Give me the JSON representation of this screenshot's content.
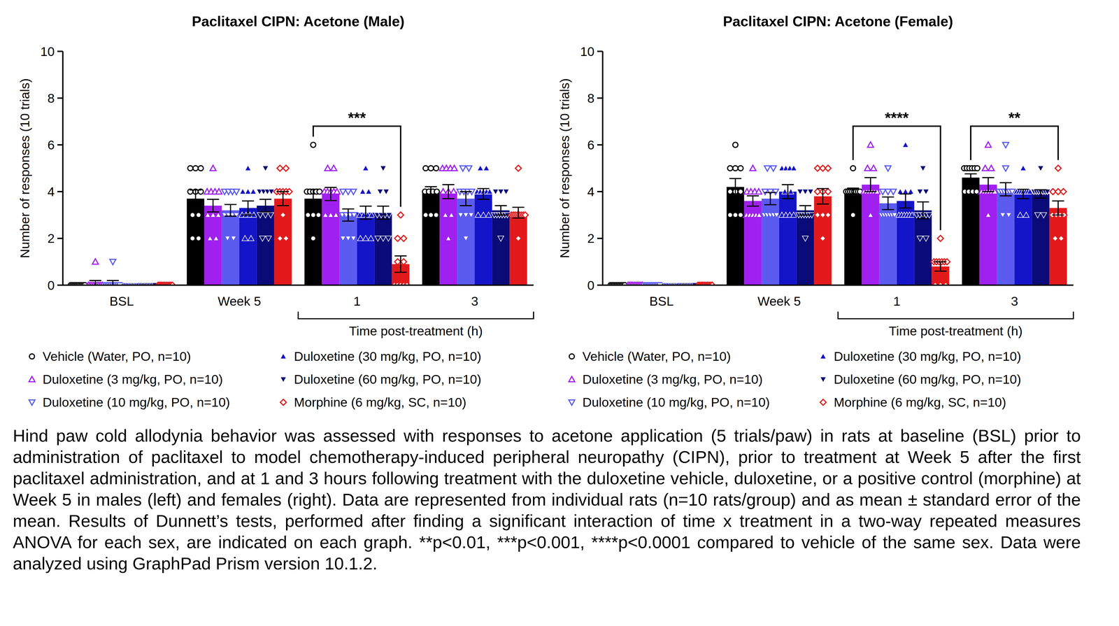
{
  "chart_data": [
    {
      "type": "bar",
      "title": "Paclitaxel CIPN: Acetone (Male)",
      "categories": [
        "BSL",
        "Week 5",
        "1",
        "3"
      ],
      "ylabel": "Number of responses (10 trials)",
      "ylim": [
        0,
        10
      ],
      "yticks": [
        0,
        2,
        4,
        6,
        8,
        10
      ],
      "grid": false,
      "legend": "bottom",
      "x_group": {
        "label": "Time post-treatment (h)",
        "categories": [
          "1",
          "3"
        ]
      },
      "annotations": [
        {
          "text": "***",
          "category": "1",
          "from": "Vehicle (Water, PO, n=10)",
          "to": "Morphine (6 mg/kg, SC, n=10)"
        }
      ],
      "series": [
        {
          "name": "Vehicle (Water, PO, n=10)",
          "color": "#000000",
          "marker": "open-circle",
          "values": [
            0,
            3.7,
            3.7,
            4.0
          ],
          "errors": [
            0,
            0.37,
            0.4,
            0.21
          ],
          "points": [
            [
              0,
              0,
              0,
              0,
              0,
              0,
              0,
              0,
              0,
              0
            ],
            [
              5,
              5,
              5,
              4,
              4,
              4,
              3,
              3,
              2,
              2
            ],
            [
              6,
              4,
              4,
              4,
              4,
              4,
              3,
              3,
              3,
              2
            ],
            [
              5,
              5,
              5,
              4,
              4,
              4,
              4,
              3,
              3,
              3
            ]
          ]
        },
        {
          "name": "Duloxetine (3 mg/kg, PO, n=10)",
          "color": "#a020f0",
          "marker": "open-triangle",
          "values": [
            0.1,
            3.4,
            3.9,
            4.0
          ],
          "errors": [
            0.1,
            0.27,
            0.28,
            0.3
          ],
          "points": [
            [
              1,
              0,
              0,
              0,
              0,
              0,
              0,
              0,
              0,
              0
            ],
            [
              5,
              4,
              4,
              4,
              4,
              3,
              3,
              3,
              2,
              2
            ],
            [
              5,
              5,
              4,
              4,
              4,
              4,
              4,
              3,
              3,
              3
            ],
            [
              5,
              5,
              5,
              5,
              4,
              4,
              4,
              3,
              3,
              2
            ]
          ]
        },
        {
          "name": "Duloxetine (10 mg/kg, PO, n=10)",
          "color": "#5b5bf0",
          "marker": "open-triangle-down",
          "values": [
            0.1,
            3.2,
            3.0,
            3.7
          ],
          "errors": [
            0.1,
            0.25,
            0.26,
            0.3
          ],
          "points": [
            [
              1,
              0,
              0,
              0,
              0,
              0,
              0,
              0,
              0,
              0
            ],
            [
              4,
              4,
              4,
              4,
              3,
              3,
              3,
              3,
              2,
              2
            ],
            [
              4,
              4,
              4,
              3,
              3,
              3,
              3,
              2,
              2,
              2
            ],
            [
              5,
              5,
              4,
              4,
              4,
              4,
              3,
              3,
              3,
              2
            ]
          ]
        },
        {
          "name": "Duloxetine (30 mg/kg, PO, n=10)",
          "color": "#1414c8",
          "marker": "triangle",
          "values": [
            0,
            3.3,
            3.1,
            3.9
          ],
          "errors": [
            0,
            0.3,
            0.28,
            0.23
          ],
          "points": [
            [
              0,
              0,
              0,
              0,
              0,
              0,
              0,
              0,
              0,
              0
            ],
            [
              5,
              4,
              4,
              4,
              3,
              3,
              3,
              3,
              2,
              2
            ],
            [
              5,
              4,
              4,
              3,
              3,
              3,
              3,
              2,
              2,
              2
            ],
            [
              5,
              5,
              4,
              4,
              4,
              4,
              4,
              3,
              3,
              3
            ]
          ]
        },
        {
          "name": "Duloxetine (60 mg/kg, PO, n=10)",
          "color": "#0a0a78",
          "marker": "triangle-down",
          "values": [
            0,
            3.4,
            3.1,
            3.2
          ],
          "errors": [
            0,
            0.27,
            0.28,
            0.2
          ],
          "points": [
            [
              0,
              0,
              0,
              0,
              0,
              0,
              0,
              0,
              0,
              0
            ],
            [
              5,
              4,
              4,
              4,
              4,
              3,
              3,
              3,
              2,
              2
            ],
            [
              5,
              4,
              4,
              3,
              3,
              3,
              3,
              2,
              2,
              2
            ],
            [
              4,
              4,
              4,
              3,
              3,
              3,
              3,
              3,
              3,
              2
            ]
          ]
        },
        {
          "name": "Morphine (6 mg/kg, SC, n=10)",
          "color": "#e31a1c",
          "marker": "open-diamond",
          "values": [
            0,
            3.7,
            0.9,
            3.1
          ],
          "errors": [
            0,
            0.3,
            0.35,
            0.23
          ],
          "points": [
            [
              0,
              0,
              0,
              0,
              0,
              0,
              0,
              0,
              0,
              0
            ],
            [
              5,
              5,
              4,
              4,
              4,
              4,
              4,
              3,
              2,
              2
            ],
            [
              3,
              2,
              2,
              1,
              1,
              0,
              0,
              0,
              0,
              0
            ],
            [
              5,
              3,
              3,
              3,
              3,
              3,
              3,
              3,
              3,
              2
            ]
          ]
        }
      ]
    },
    {
      "type": "bar",
      "title": "Paclitaxel CIPN: Acetone (Female)",
      "categories": [
        "BSL",
        "Week 5",
        "1",
        "3"
      ],
      "ylabel": "Number of responses (10 trials)",
      "ylim": [
        0,
        10
      ],
      "yticks": [
        0,
        2,
        4,
        6,
        8,
        10
      ],
      "grid": false,
      "legend": "bottom",
      "x_group": {
        "label": "Time post-treatment (h)",
        "categories": [
          "1",
          "3"
        ]
      },
      "annotations": [
        {
          "text": "****",
          "category": "1",
          "from": "Vehicle (Water, PO, n=10)",
          "to": "Morphine (6 mg/kg, SC, n=10)"
        },
        {
          "text": "**",
          "category": "3",
          "from": "Vehicle (Water, PO, n=10)",
          "to": "Morphine (6 mg/kg, SC, n=10)"
        }
      ],
      "series": [
        {
          "name": "Vehicle (Water, PO, n=10)",
          "color": "#000000",
          "marker": "open-circle",
          "values": [
            0,
            4.2,
            4.0,
            4.6
          ],
          "errors": [
            0,
            0.36,
            0.15,
            0.16
          ],
          "points": [
            [
              0,
              0,
              0,
              0,
              0,
              0,
              0,
              0,
              0,
              0
            ],
            [
              6,
              5,
              5,
              5,
              4,
              4,
              4,
              3,
              3,
              3
            ],
            [
              5,
              4,
              4,
              4,
              4,
              4,
              4,
              4,
              4,
              3
            ],
            [
              5,
              5,
              5,
              5,
              5,
              5,
              4,
              4,
              4,
              4
            ]
          ]
        },
        {
          "name": "Duloxetine (3 mg/kg, PO, n=10)",
          "color": "#a020f0",
          "marker": "open-triangle",
          "values": [
            0,
            3.6,
            4.3,
            4.3
          ],
          "errors": [
            0,
            0.22,
            0.3,
            0.3
          ],
          "points": [
            [
              0,
              0,
              0,
              0,
              0,
              0,
              0,
              0,
              0,
              0
            ],
            [
              5,
              4,
              4,
              4,
              4,
              3,
              3,
              3,
              3,
              3
            ],
            [
              6,
              5,
              5,
              4,
              4,
              4,
              4,
              4,
              4,
              3
            ],
            [
              6,
              5,
              5,
              4,
              4,
              4,
              4,
              4,
              4,
              3
            ]
          ]
        },
        {
          "name": "Duloxetine (10 mg/kg, PO, n=10)",
          "color": "#5b5bf0",
          "marker": "open-triangle-down",
          "values": [
            0,
            3.7,
            3.5,
            4.1
          ],
          "errors": [
            0,
            0.26,
            0.27,
            0.28
          ],
          "points": [
            [
              0,
              0,
              0,
              0,
              0,
              0,
              0,
              0,
              0,
              0
            ],
            [
              5,
              5,
              4,
              4,
              4,
              3,
              3,
              3,
              3,
              3
            ],
            [
              5,
              4,
              4,
              4,
              3,
              3,
              3,
              3,
              3,
              3
            ],
            [
              6,
              5,
              4,
              4,
              4,
              4,
              4,
              4,
              3,
              3
            ]
          ]
        },
        {
          "name": "Duloxetine (30 mg/kg, PO, n=10)",
          "color": "#1414c8",
          "marker": "triangle",
          "values": [
            0,
            4.0,
            3.6,
            3.9
          ],
          "errors": [
            0,
            0.3,
            0.3,
            0.2
          ],
          "points": [
            [
              0,
              0,
              0,
              0,
              0,
              0,
              0,
              0,
              0,
              0
            ],
            [
              5,
              5,
              5,
              5,
              4,
              4,
              3,
              3,
              3,
              3
            ],
            [
              6,
              4,
              4,
              4,
              3,
              3,
              3,
              3,
              3,
              3
            ],
            [
              5,
              4,
              4,
              4,
              4,
              4,
              4,
              4,
              3,
              3
            ]
          ]
        },
        {
          "name": "Duloxetine (60 mg/kg, PO, n=10)",
          "color": "#0a0a78",
          "marker": "triangle-down",
          "values": [
            0,
            3.2,
            3.2,
            3.9
          ],
          "errors": [
            0,
            0.2,
            0.36,
            0.18
          ],
          "points": [
            [
              0,
              0,
              0,
              0,
              0,
              0,
              0,
              0,
              0,
              0
            ],
            [
              4,
              4,
              4,
              3,
              3,
              3,
              3,
              3,
              3,
              2
            ],
            [
              5,
              4,
              4,
              3,
              3,
              3,
              3,
              3,
              2,
              2
            ],
            [
              5,
              4,
              4,
              4,
              4,
              4,
              4,
              4,
              3,
              3
            ]
          ]
        },
        {
          "name": "Morphine (6 mg/kg, SC, n=10)",
          "color": "#e31a1c",
          "marker": "open-diamond",
          "values": [
            0,
            3.8,
            0.8,
            3.3
          ],
          "errors": [
            0,
            0.33,
            0.2,
            0.3
          ],
          "points": [
            [
              0,
              0,
              0,
              0,
              0,
              0,
              0,
              0,
              0,
              0
            ],
            [
              5,
              5,
              5,
              4,
              4,
              4,
              3,
              3,
              3,
              2
            ],
            [
              2,
              1,
              1,
              1,
              1,
              1,
              1,
              0,
              0,
              0
            ],
            [
              5,
              4,
              4,
              4,
              3,
              3,
              3,
              3,
              2,
              2
            ]
          ]
        }
      ]
    }
  ],
  "caption": "Hind paw cold allodynia behavior was assessed with responses to acetone application (5 trials/paw) in rats at baseline (BSL) prior to administration of paclitaxel to model chemotherapy-induced peripheral neuropathy (CIPN), prior to treatment at Week 5 after the first paclitaxel administration, and at 1 and 3 hours following treatment with the duloxetine vehicle, duloxetine, or a positive control (morphine) at Week 5 in males (left) and females (right). Data are represented from individual rats (n=10 rats/group) and as mean ± standard error of the mean. Results of Dunnett’s tests, performed after finding a significant interaction of time x treatment in a two-way repeated measures ANOVA for each sex, are indicated on each graph. **p<0.01, ***p<0.001, ****p<0.0001 compared to vehicle of the same sex. Data were analyzed using GraphPad Prism version 10.1.2."
}
